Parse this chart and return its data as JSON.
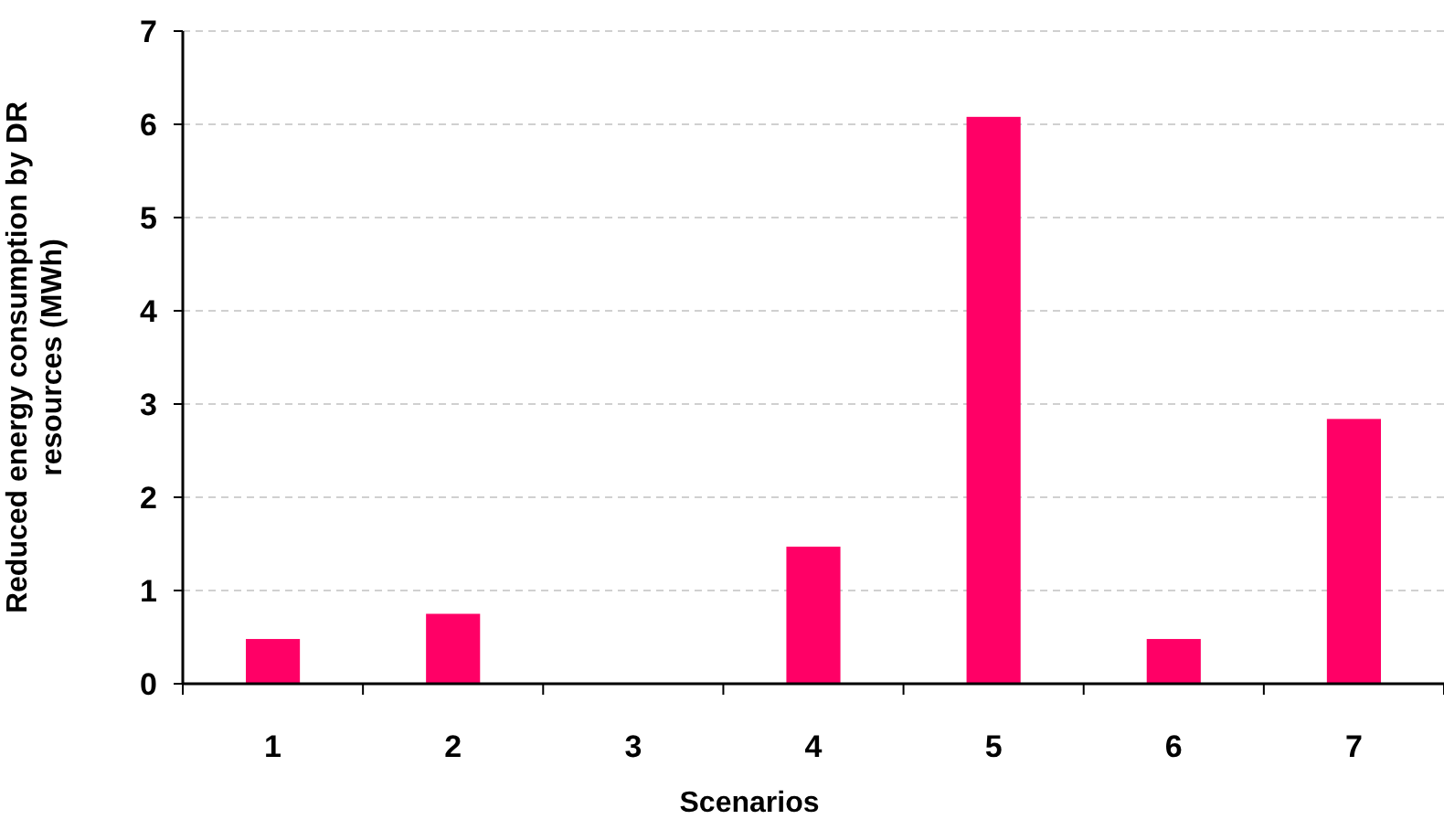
{
  "chart_data": {
    "type": "bar",
    "xlabel": "Scenarios",
    "ylabel": "Reduced energy consumption by DR resources (MWh)",
    "categories": [
      "1",
      "2",
      "3",
      "4",
      "5",
      "6",
      "7"
    ],
    "values": [
      0.48,
      0.75,
      0,
      1.47,
      6.08,
      0.48,
      2.84
    ],
    "color": "#ff0066",
    "ylim": [
      0,
      7
    ],
    "yticks": [
      0,
      1,
      2,
      3,
      4,
      5,
      6,
      7
    ],
    "grid": "y"
  }
}
